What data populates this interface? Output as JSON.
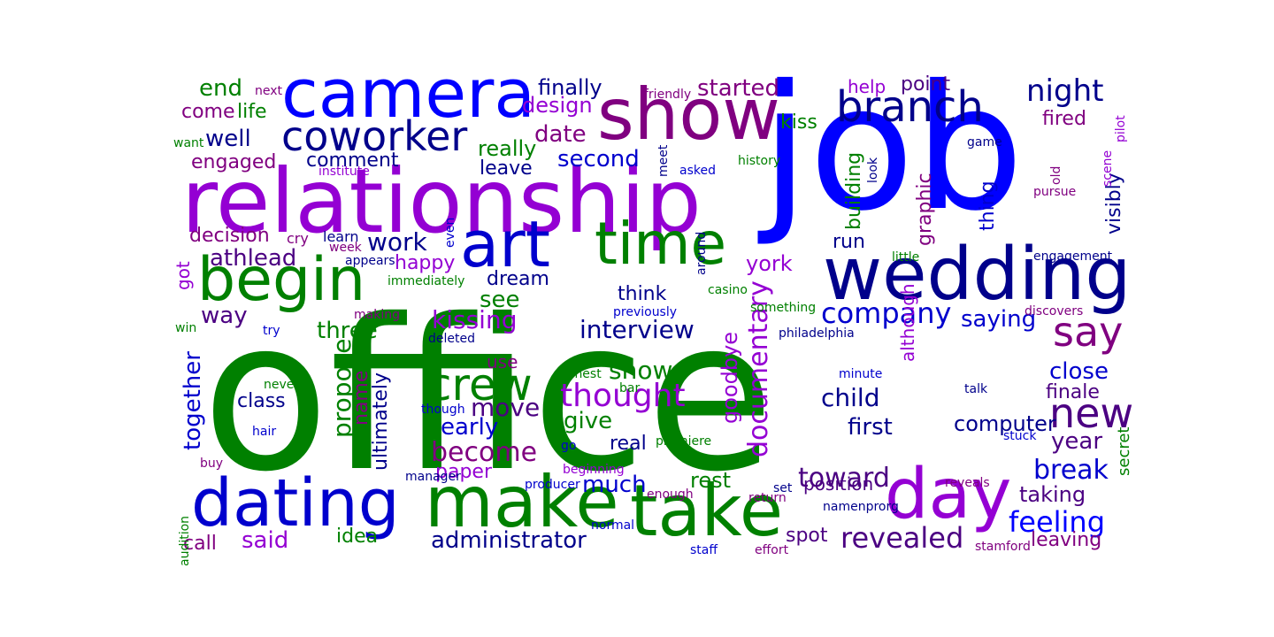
{
  "words": [
    {
      "text": "office",
      "color": "#008000"
    },
    {
      "text": "job",
      "color": "#0000ff"
    },
    {
      "text": "relationship",
      "color": "#9400d3"
    },
    {
      "text": "wedding",
      "color": "#00008b"
    },
    {
      "text": "camera",
      "color": "#0000ff"
    },
    {
      "text": "show",
      "color": "#800080"
    },
    {
      "text": "make",
      "color": "#008000"
    },
    {
      "text": "take",
      "color": "#008000"
    },
    {
      "text": "dating",
      "color": "#0000cd"
    },
    {
      "text": "day",
      "color": "#9400d3"
    },
    {
      "text": "time",
      "color": "#008000"
    },
    {
      "text": "art",
      "color": "#0000cd"
    },
    {
      "text": "begin",
      "color": "#008000"
    },
    {
      "text": "coworker",
      "color": "#00008b"
    },
    {
      "text": "branch",
      "color": "#00008b"
    },
    {
      "text": "crew",
      "color": "#008000"
    },
    {
      "text": "say",
      "color": "#800080"
    },
    {
      "text": "new",
      "color": "#4b0082"
    },
    {
      "text": "company",
      "color": "#0000cd"
    },
    {
      "text": "thought",
      "color": "#9400d3"
    },
    {
      "text": "night",
      "color": "#00008b"
    },
    {
      "text": "documentary",
      "color": "#9400d3"
    },
    {
      "text": "revealed",
      "color": "#4b0082"
    },
    {
      "text": "feeling",
      "color": "#0000ff"
    },
    {
      "text": "toward",
      "color": "#4b0082"
    },
    {
      "text": "become",
      "color": "#800080"
    },
    {
      "text": "interview",
      "color": "#00008b"
    },
    {
      "text": "administrator",
      "color": "#00008b"
    },
    {
      "text": "kissing",
      "color": "#9400d3"
    },
    {
      "text": "saying",
      "color": "#0000cd"
    },
    {
      "text": "break",
      "color": "#0000cd"
    },
    {
      "text": "athlead",
      "color": "#4b0082"
    },
    {
      "text": "child",
      "color": "#00008b"
    },
    {
      "text": "first",
      "color": "#00008b"
    },
    {
      "text": "year",
      "color": "#4b0082"
    },
    {
      "text": "close",
      "color": "#0000cd"
    },
    {
      "text": "shown",
      "color": "#008000"
    },
    {
      "text": "move",
      "color": "#4b0082"
    },
    {
      "text": "give",
      "color": "#008000"
    },
    {
      "text": "early",
      "color": "#0000cd"
    },
    {
      "text": "much",
      "color": "#0000cd"
    },
    {
      "text": "work",
      "color": "#00008b"
    },
    {
      "text": "well",
      "color": "#00008b"
    },
    {
      "text": "end",
      "color": "#008000"
    },
    {
      "text": "started",
      "color": "#800080"
    },
    {
      "text": "finally",
      "color": "#00008b"
    },
    {
      "text": "second",
      "color": "#0000cd"
    },
    {
      "text": "date",
      "color": "#800080"
    },
    {
      "text": "really",
      "color": "#008000"
    },
    {
      "text": "leave",
      "color": "#00008b"
    },
    {
      "text": "see",
      "color": "#008000"
    },
    {
      "text": "three",
      "color": "#008000"
    },
    {
      "text": "together",
      "color": "#0000cd"
    },
    {
      "text": "propose",
      "color": "#008000"
    },
    {
      "text": "way",
      "color": "#4b0082"
    },
    {
      "text": "computer",
      "color": "#00008b"
    },
    {
      "text": "taking",
      "color": "#4b0082"
    },
    {
      "text": "position",
      "color": "#4b0082"
    },
    {
      "text": "rest",
      "color": "#008000"
    },
    {
      "text": "said",
      "color": "#9400d3"
    },
    {
      "text": "leaving",
      "color": "#800080"
    },
    {
      "text": "design",
      "color": "#9400d3"
    },
    {
      "text": "point",
      "color": "#4b0082"
    },
    {
      "text": "help",
      "color": "#9400d3"
    },
    {
      "text": "come",
      "color": "#800080"
    },
    {
      "text": "life",
      "color": "#008000"
    },
    {
      "text": "engaged",
      "color": "#800080"
    },
    {
      "text": "comment",
      "color": "#00008b"
    },
    {
      "text": "decision",
      "color": "#800080"
    },
    {
      "text": "happy",
      "color": "#9400d3"
    },
    {
      "text": "dream",
      "color": "#00008b"
    },
    {
      "text": "think",
      "color": "#00008b"
    },
    {
      "text": "kiss",
      "color": "#008000"
    },
    {
      "text": "run",
      "color": "#00008b"
    },
    {
      "text": "york",
      "color": "#9400d3"
    },
    {
      "text": "class",
      "color": "#00008b"
    },
    {
      "text": "name",
      "color": "#800080"
    },
    {
      "text": "ultimately",
      "color": "#00008b"
    },
    {
      "text": "paper",
      "color": "#9400d3"
    },
    {
      "text": "real",
      "color": "#00008b"
    },
    {
      "text": "spot",
      "color": "#4b0082"
    },
    {
      "text": "call",
      "color": "#800080"
    },
    {
      "text": "idea",
      "color": "#008000"
    },
    {
      "text": "finale",
      "color": "#4b0082"
    },
    {
      "text": "fired",
      "color": "#800080"
    },
    {
      "text": "goodbye",
      "color": "#9400d3"
    },
    {
      "text": "building",
      "color": "#008000"
    },
    {
      "text": "graphic",
      "color": "#800080"
    },
    {
      "text": "thing",
      "color": "#0000cd"
    },
    {
      "text": "visibly",
      "color": "#00008b"
    },
    {
      "text": "although",
      "color": "#9400d3"
    },
    {
      "text": "secret",
      "color": "#008000"
    },
    {
      "text": "got",
      "color": "#9400d3"
    },
    {
      "text": "use",
      "color": "#800080"
    },
    {
      "text": "cry",
      "color": "#800080"
    },
    {
      "text": "learn",
      "color": "#00008b"
    },
    {
      "text": "next",
      "color": "#800080"
    },
    {
      "text": "friendly",
      "color": "#800080"
    },
    {
      "text": "want",
      "color": "#008000"
    },
    {
      "text": "institute",
      "color": "#9400d3"
    },
    {
      "text": "week",
      "color": "#800080"
    },
    {
      "text": "appears",
      "color": "#00008b"
    },
    {
      "text": "immediately",
      "color": "#008000"
    },
    {
      "text": "asked",
      "color": "#0000cd"
    },
    {
      "text": "history",
      "color": "#008000"
    },
    {
      "text": "little",
      "color": "#008000"
    },
    {
      "text": "engagement",
      "color": "#00008b"
    },
    {
      "text": "casino",
      "color": "#008000"
    },
    {
      "text": "something",
      "color": "#008000"
    },
    {
      "text": "previously",
      "color": "#0000cd"
    },
    {
      "text": "discovers",
      "color": "#800080"
    },
    {
      "text": "making",
      "color": "#800080"
    },
    {
      "text": "try",
      "color": "#0000cd"
    },
    {
      "text": "win",
      "color": "#008000"
    },
    {
      "text": "deleted",
      "color": "#00008b"
    },
    {
      "text": "philadelphia",
      "color": "#00008b"
    },
    {
      "text": "minute",
      "color": "#0000cd"
    },
    {
      "text": "honest",
      "color": "#008000"
    },
    {
      "text": "bar",
      "color": "#008000"
    },
    {
      "text": "never",
      "color": "#008000"
    },
    {
      "text": "though",
      "color": "#0000cd"
    },
    {
      "text": "talk",
      "color": "#00008b"
    },
    {
      "text": "hair",
      "color": "#0000cd"
    },
    {
      "text": "stuck",
      "color": "#0000cd"
    },
    {
      "text": "go",
      "color": "#0000cd"
    },
    {
      "text": "premiere",
      "color": "#008000"
    },
    {
      "text": "buy",
      "color": "#800080"
    },
    {
      "text": "manager",
      "color": "#00008b"
    },
    {
      "text": "beginning",
      "color": "#9400d3"
    },
    {
      "text": "producer",
      "color": "#0000cd"
    },
    {
      "text": "enough",
      "color": "#800080"
    },
    {
      "text": "set",
      "color": "#00008b"
    },
    {
      "text": "reveals",
      "color": "#800080"
    },
    {
      "text": "return",
      "color": "#800080"
    },
    {
      "text": "namenprorg",
      "color": "#00008b"
    },
    {
      "text": "normal",
      "color": "#0000cd"
    },
    {
      "text": "staff",
      "color": "#0000cd"
    },
    {
      "text": "effort",
      "color": "#800080"
    },
    {
      "text": "stamford",
      "color": "#800080"
    },
    {
      "text": "audition",
      "color": "#008000"
    },
    {
      "text": "even",
      "color": "#0000cd"
    },
    {
      "text": "around",
      "color": "#00008b"
    },
    {
      "text": "meet",
      "color": "#00008b"
    },
    {
      "text": "look",
      "color": "#00008b"
    },
    {
      "text": "game",
      "color": "#00008b"
    },
    {
      "text": "scene",
      "color": "#9400d3"
    },
    {
      "text": "pilot",
      "color": "#9400d3"
    },
    {
      "text": "old",
      "color": "#800080"
    },
    {
      "text": "pursue",
      "color": "#800080"
    }
  ]
}
